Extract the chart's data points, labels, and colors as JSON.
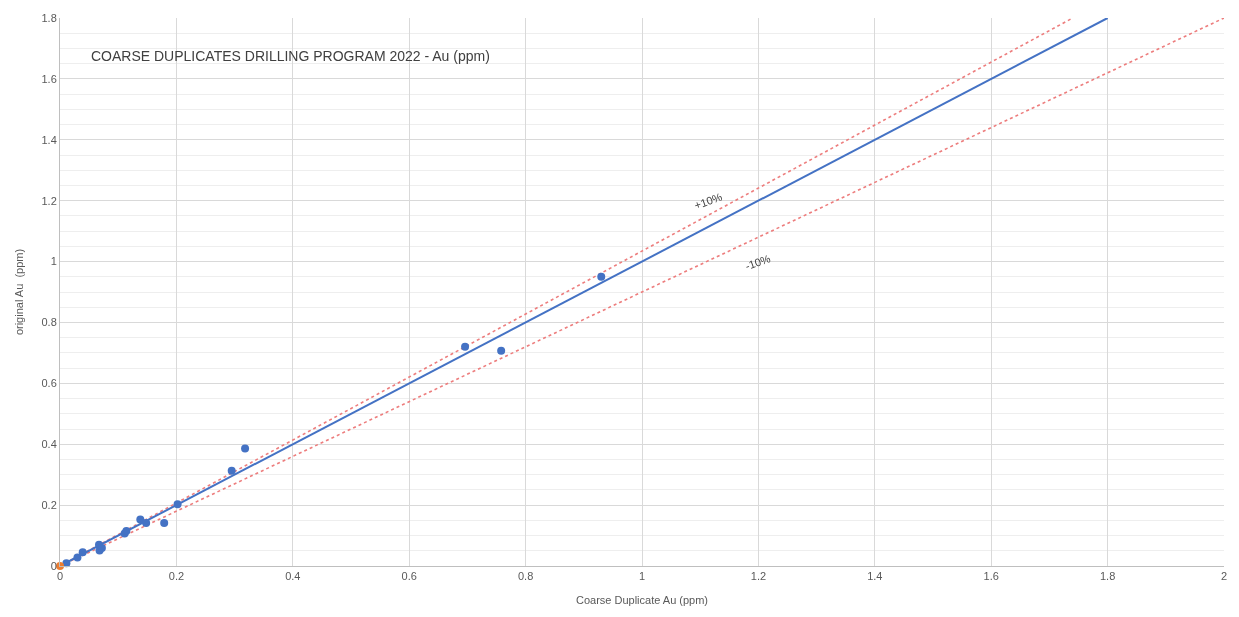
{
  "chart_data": {
    "type": "scatter",
    "title": "COARSE DUPLICATES DRILLING PROGRAM 2022 - Au (ppm)",
    "xlabel": "Coarse Duplicate Au (ppm)",
    "ylabel": "original Au  (ppm)",
    "xlim": [
      0,
      2
    ],
    "ylim": [
      0,
      1.8
    ],
    "xticks": [
      0,
      0.2,
      0.4,
      0.6,
      0.8,
      1,
      1.2,
      1.4,
      1.6,
      1.8,
      2
    ],
    "yticks": [
      0,
      0.2,
      0.4,
      0.6,
      0.8,
      1,
      1.2,
      1.4,
      1.6,
      1.8
    ],
    "grid": true,
    "series": [
      {
        "type": "line",
        "color": "#ed7d7d",
        "line_style": "dotted",
        "marker": "none",
        "x": [
          0,
          1.74
        ],
        "values": [
          0,
          1.8
        ]
      },
      {
        "type": "line",
        "color": "#ed7d7d",
        "line_style": "dotted",
        "marker": "none",
        "x": [
          0,
          2
        ],
        "values": [
          0,
          1.8
        ]
      },
      {
        "type": "line",
        "color": "#4472c4",
        "line_style": "solid",
        "marker": "none",
        "x": [
          0,
          1.8
        ],
        "values": [
          0,
          1.8
        ]
      },
      {
        "color": "#4472c4",
        "marker": "circle",
        "x": [
          0.011,
          0.03,
          0.039,
          0.067,
          0.068,
          0.072,
          0.111,
          0.114,
          0.138,
          0.148,
          0.179,
          0.202,
          0.295,
          0.318,
          0.696,
          0.758,
          0.93
        ],
        "values": [
          0.009,
          0.028,
          0.045,
          0.07,
          0.051,
          0.059,
          0.107,
          0.115,
          0.153,
          0.141,
          0.141,
          0.203,
          0.313,
          0.386,
          0.72,
          0.707,
          0.95
        ]
      },
      {
        "color": "#ed7d31",
        "marker": "circle",
        "x": [
          0
        ],
        "values": [
          0
        ]
      }
    ],
    "annotations": [
      "+10%",
      "-10%"
    ]
  }
}
